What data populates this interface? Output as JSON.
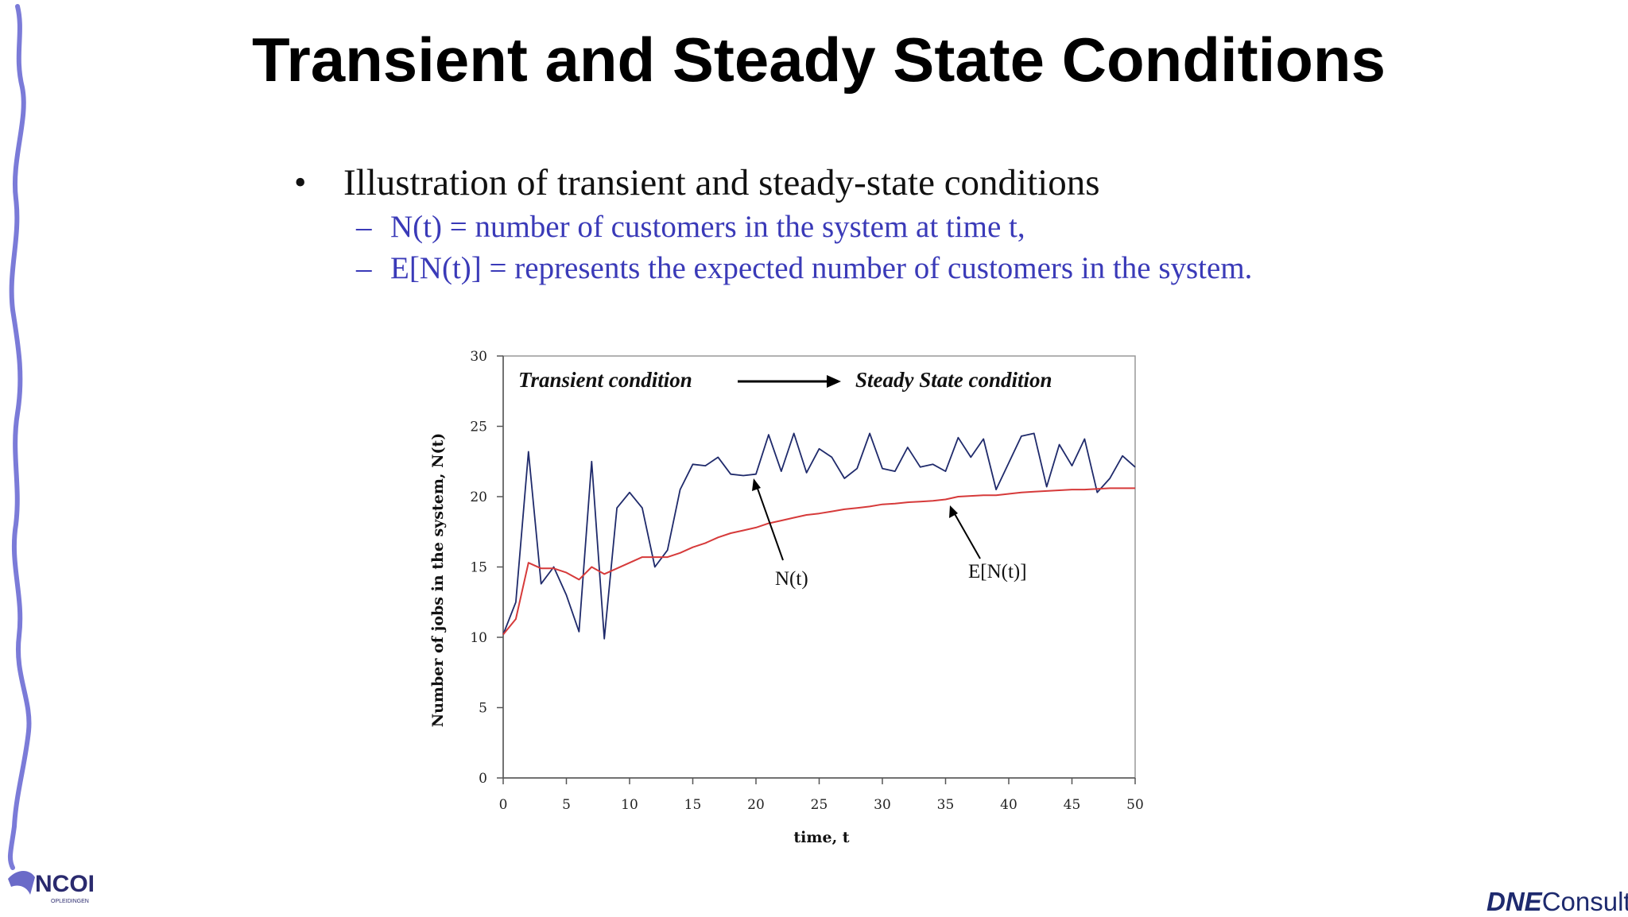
{
  "slide": {
    "title": "Transient and Steady State Conditions",
    "bullet": "Illustration of transient and steady-state conditions",
    "subbullets": [
      "N(t) = number of customers in the system at time t,",
      "E[N(t)] = represents the expected number of customers in the system."
    ],
    "dash": "–",
    "dot": "•"
  },
  "logos": {
    "left": "NCOI",
    "left_sub": "OPLEIDINGEN",
    "right_brand": "DNE",
    "right_suffix": "Consult"
  },
  "colors": {
    "accent": "#3a3ab8",
    "series_nt": "#1f2a6b",
    "series_ent": "#d63a3a",
    "border_wave": "#7b7bd8"
  },
  "chart_data": {
    "type": "line",
    "title": "",
    "xlabel": "time, t",
    "ylabel": "Number of jobs in the system, N(t)",
    "xlim": [
      0,
      50
    ],
    "ylim": [
      0,
      30
    ],
    "xticks": [
      0,
      5,
      10,
      15,
      20,
      25,
      30,
      35,
      40,
      45,
      50
    ],
    "yticks": [
      0,
      5,
      10,
      15,
      20,
      25,
      30
    ],
    "annotations": {
      "transient": "Transient condition",
      "steady": "Steady State condition",
      "nt_label": "N(t)",
      "ent_label": "E[N(t)]"
    },
    "series": [
      {
        "name": "N(t)",
        "x": [
          0,
          1,
          2,
          3,
          4,
          5,
          6,
          7,
          8,
          9,
          10,
          11,
          12,
          13,
          14,
          15,
          16,
          17,
          18,
          19,
          20,
          21,
          22,
          23,
          24,
          25,
          26,
          27,
          28,
          29,
          30,
          31,
          32,
          33,
          34,
          35,
          36,
          37,
          38,
          39,
          40,
          41,
          42,
          43,
          44,
          45,
          46,
          47,
          48,
          49,
          50
        ],
        "values": [
          10.2,
          12.5,
          23.2,
          13.8,
          15.0,
          13.0,
          10.4,
          22.5,
          9.9,
          19.2,
          20.3,
          19.2,
          15.0,
          16.2,
          20.5,
          22.3,
          22.2,
          22.8,
          21.6,
          21.5,
          21.6,
          24.4,
          21.8,
          24.5,
          21.7,
          23.4,
          22.8,
          21.3,
          22.0,
          24.5,
          22.0,
          21.8,
          23.5,
          22.1,
          22.3,
          21.8,
          24.2,
          22.8,
          24.1,
          20.5,
          22.4,
          24.3,
          24.5,
          20.7,
          23.7,
          22.2,
          24.1,
          20.3,
          21.3,
          22.9,
          22.1
        ]
      },
      {
        "name": "E[N(t)]",
        "x": [
          0,
          1,
          2,
          3,
          4,
          5,
          6,
          7,
          8,
          9,
          10,
          11,
          12,
          13,
          14,
          15,
          16,
          17,
          18,
          19,
          20,
          21,
          22,
          23,
          24,
          25,
          26,
          27,
          28,
          29,
          30,
          31,
          32,
          33,
          34,
          35,
          36,
          37,
          38,
          39,
          40,
          41,
          42,
          43,
          44,
          45,
          46,
          47,
          48,
          49,
          50
        ],
        "values": [
          10.2,
          11.3,
          15.3,
          14.9,
          14.9,
          14.6,
          14.1,
          15.0,
          14.5,
          14.9,
          15.3,
          15.7,
          15.7,
          15.7,
          16.0,
          16.4,
          16.7,
          17.1,
          17.4,
          17.6,
          17.8,
          18.1,
          18.3,
          18.5,
          18.7,
          18.8,
          18.95,
          19.1,
          19.2,
          19.3,
          19.45,
          19.5,
          19.6,
          19.65,
          19.7,
          19.8,
          20.0,
          20.05,
          20.1,
          20.1,
          20.2,
          20.3,
          20.35,
          20.4,
          20.45,
          20.5,
          20.5,
          20.55,
          20.6,
          20.6,
          20.6
        ]
      }
    ]
  }
}
